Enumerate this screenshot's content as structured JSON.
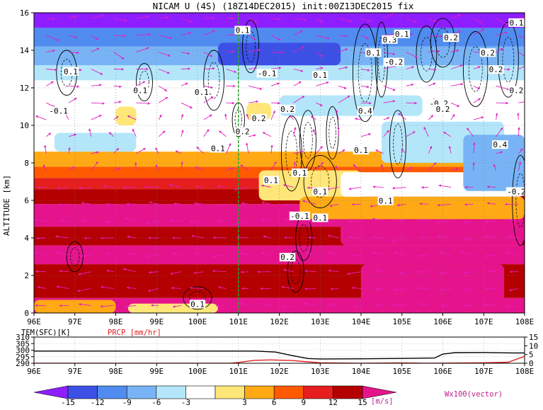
{
  "chart_data": [
    {
      "type": "heatmap",
      "title": "NICAM U (4S) (18Z14DEC2015) init:00Z13DEC2015 fix",
      "ylabel": "ALTITUDE [km]",
      "xlim": [
        96,
        108
      ],
      "ylim": [
        0,
        16
      ],
      "x_ticks": [
        "96E",
        "97E",
        "98E",
        "99E",
        "100E",
        "101E",
        "102E",
        "103E",
        "104E",
        "105E",
        "106E",
        "107E",
        "108E"
      ],
      "y_ticks": [
        "0",
        "2",
        "4",
        "6",
        "8",
        "10",
        "12",
        "14",
        "16"
      ],
      "grid": "dotted",
      "vertical_marker_lon": 101,
      "colorbar": {
        "levels": [
          -15,
          -12,
          -9,
          -6,
          -3,
          3,
          6,
          9,
          12,
          15
        ],
        "labels": [
          "-15",
          "-12",
          "-9",
          "-6",
          "-3",
          "3",
          "6",
          "9",
          "12",
          "15"
        ],
        "unit": "[m/s]",
        "colors": [
          "#8e1eff",
          "#3c50e6",
          "#508cf0",
          "#78b4f5",
          "#b4e6fa",
          "#ffffff",
          "#ffe678",
          "#ffaa14",
          "#ff5a00",
          "#e61e1e",
          "#b40000",
          "#e6148c"
        ]
      },
      "layers_u": [
        {
          "z0": 0,
          "z1": 0.8,
          "u": 15
        },
        {
          "z0": 0.8,
          "z1": 2.6,
          "u": 13
        },
        {
          "z0": 2.6,
          "z1": 3.6,
          "u": 15
        },
        {
          "z0": 3.6,
          "z1": 4.6,
          "u": 12
        },
        {
          "z0": 4.6,
          "z1": 5.8,
          "u": 15
        },
        {
          "z0": 5.8,
          "z1": 6.6,
          "u": 12
        },
        {
          "z0": 6.6,
          "z1": 7.2,
          "u": 10
        },
        {
          "z0": 7.2,
          "z1": 7.8,
          "u": 7
        },
        {
          "z0": 7.8,
          "z1": 8.6,
          "u": 4
        },
        {
          "z0": 8.6,
          "z1": 11.2,
          "u": 0
        },
        {
          "z0": 11.2,
          "z1": 12.4,
          "u": -2
        },
        {
          "z0": 12.4,
          "z1": 13.2,
          "u": -5
        },
        {
          "z0": 13.2,
          "z1": 14.2,
          "u": -8
        },
        {
          "z0": 14.2,
          "z1": 15.2,
          "u": -11
        },
        {
          "z0": 15.2,
          "z1": 16,
          "u": -16
        }
      ],
      "contour_labels": [
        {
          "lon": 96.9,
          "alt": 12.8,
          "text": "0.1"
        },
        {
          "lon": 98.6,
          "alt": 11.8,
          "text": "0.1"
        },
        {
          "lon": 100.1,
          "alt": 11.7,
          "text": "0.1"
        },
        {
          "lon": 101.1,
          "alt": 15.0,
          "text": "0.1"
        },
        {
          "lon": 101.7,
          "alt": 12.7,
          "text": "-0.1"
        },
        {
          "lon": 103.0,
          "alt": 12.6,
          "text": "0.1"
        },
        {
          "lon": 104.3,
          "alt": 13.8,
          "text": "0.1"
        },
        {
          "lon": 104.7,
          "alt": 14.5,
          "text": "0.3"
        },
        {
          "lon": 105.0,
          "alt": 14.8,
          "text": "0.1"
        },
        {
          "lon": 104.8,
          "alt": 13.3,
          "text": "-0.2"
        },
        {
          "lon": 106.2,
          "alt": 14.6,
          "text": "0.2"
        },
        {
          "lon": 107.1,
          "alt": 13.8,
          "text": "0.2"
        },
        {
          "lon": 107.3,
          "alt": 12.9,
          "text": "0.2"
        },
        {
          "lon": 107.8,
          "alt": 11.8,
          "text": "0.2"
        },
        {
          "lon": 107.8,
          "alt": 15.4,
          "text": "0.1"
        },
        {
          "lon": 96.6,
          "alt": 10.7,
          "text": "-0.1"
        },
        {
          "lon": 101.5,
          "alt": 10.3,
          "text": "0.2"
        },
        {
          "lon": 102.2,
          "alt": 10.8,
          "text": "0.2"
        },
        {
          "lon": 104.1,
          "alt": 10.7,
          "text": "0.4"
        },
        {
          "lon": 105.9,
          "alt": 11.1,
          "text": "-0.2"
        },
        {
          "lon": 106.0,
          "alt": 10.8,
          "text": "0.2"
        },
        {
          "lon": 100.5,
          "alt": 8.7,
          "text": "0.1"
        },
        {
          "lon": 101.1,
          "alt": 9.6,
          "text": "0.2"
        },
        {
          "lon": 104.0,
          "alt": 8.6,
          "text": "0.1"
        },
        {
          "lon": 107.4,
          "alt": 8.9,
          "text": "0.4"
        },
        {
          "lon": 101.8,
          "alt": 7.0,
          "text": "0.1"
        },
        {
          "lon": 102.5,
          "alt": 7.4,
          "text": "0.1"
        },
        {
          "lon": 103.0,
          "alt": 6.4,
          "text": "0.1"
        },
        {
          "lon": 104.6,
          "alt": 5.9,
          "text": "0.1"
        },
        {
          "lon": 107.8,
          "alt": 6.4,
          "text": "-0.2"
        },
        {
          "lon": 102.5,
          "alt": 5.1,
          "text": "-0.1"
        },
        {
          "lon": 103.0,
          "alt": 5.0,
          "text": "0.1"
        },
        {
          "lon": 102.2,
          "alt": 2.9,
          "text": "0.2"
        },
        {
          "lon": 100.0,
          "alt": 0.4,
          "text": "0.1"
        }
      ],
      "vector_legend": "Wx100(vector)"
    },
    {
      "type": "line",
      "title_left": "TEM(SFC)[K]",
      "title_right": "PRCP [mm/hr]",
      "left_ticks": [
        "310",
        "305",
        "300",
        "295",
        "290"
      ],
      "right_ticks": [
        "15",
        "10",
        "5",
        "0"
      ],
      "left_range": [
        290,
        310
      ],
      "right_range": [
        0,
        15
      ],
      "x_ticks": [
        "96E",
        "97E",
        "98E",
        "99E",
        "100E",
        "101E",
        "102E",
        "103E",
        "104E",
        "105E",
        "106E",
        "107E",
        "108E"
      ],
      "series": [
        {
          "name": "TEM(SFC)[K]",
          "color": "#000000",
          "axis": "left",
          "x": [
            96,
            100.5,
            101,
            101.4,
            101.9,
            102.3,
            102.7,
            103,
            104,
            105,
            105.8,
            106,
            106.3,
            107,
            107.7,
            108
          ],
          "y": [
            299.3,
            299.3,
            299.3,
            299.3,
            298.6,
            296,
            293.6,
            293.3,
            293.4,
            293.7,
            294,
            297,
            298.1,
            298.2,
            297.9,
            297.9
          ]
        },
        {
          "name": "PRCP [mm/hr]",
          "color": "#e02020",
          "axis": "right",
          "x": [
            96,
            100.8,
            101,
            101.4,
            101.8,
            102.3,
            102.7,
            103,
            104,
            105,
            105.6,
            106,
            107,
            107.6,
            108
          ],
          "y": [
            0,
            0,
            0.5,
            1.7,
            1.9,
            1.6,
            0.8,
            0.3,
            0,
            0.2,
            0,
            0.1,
            0.3,
            0.6,
            4
          ]
        }
      ]
    }
  ]
}
